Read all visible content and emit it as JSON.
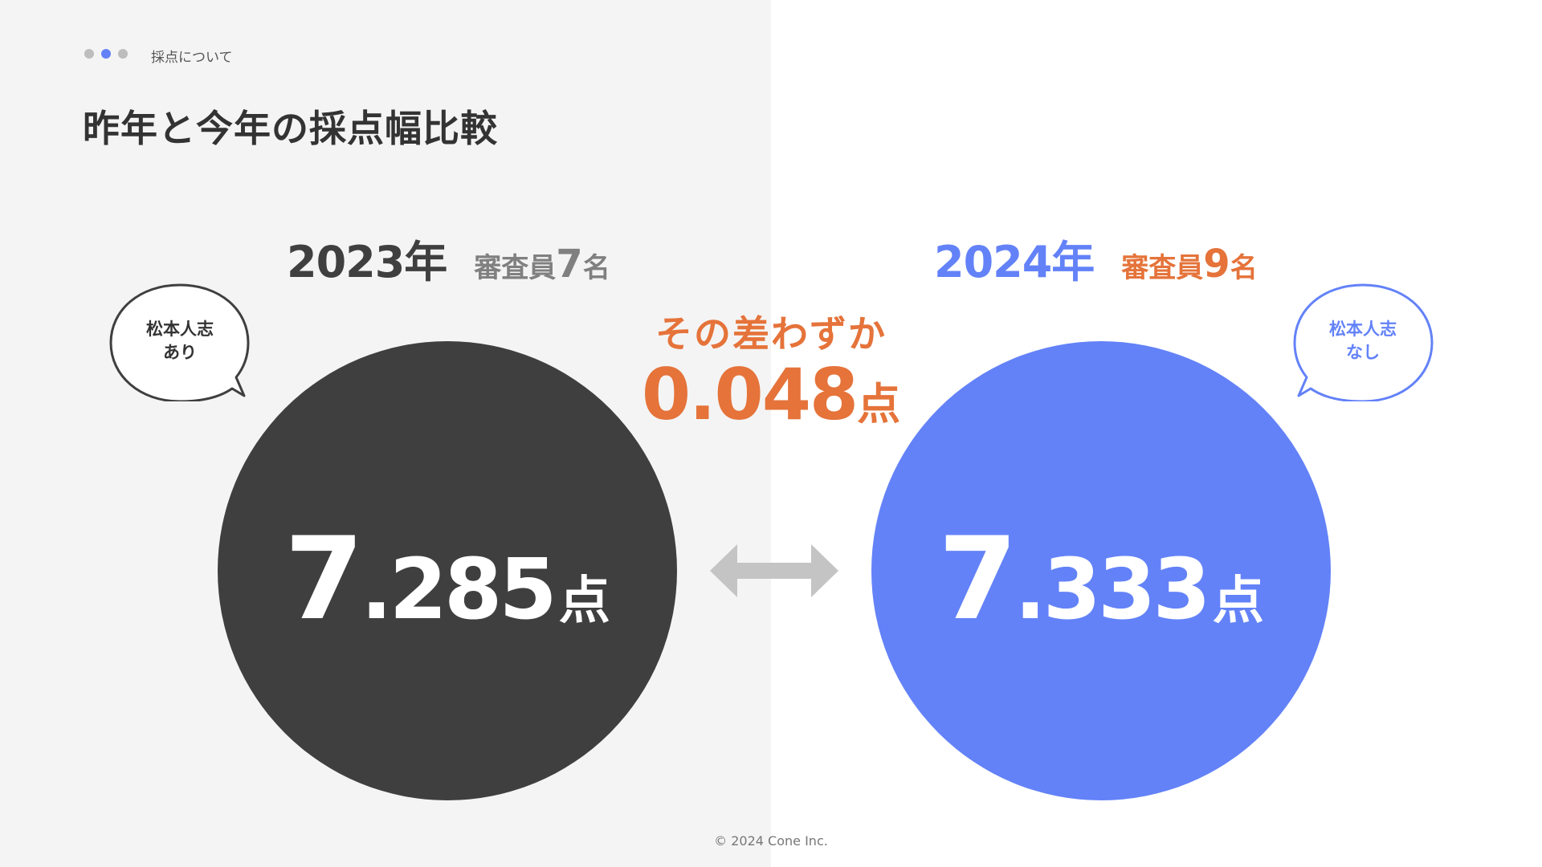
{
  "breadcrumb": {
    "section_label": "採点について",
    "dots": 3,
    "active_dot": 2
  },
  "page_title": "昨年と今年の採点幅比較",
  "year_2023": {
    "year": "2023年",
    "judges_prefix": "審査員",
    "judges_count": "7",
    "judges_suffix": "名",
    "bubble_line1": "松本人志",
    "bubble_line2": "あり",
    "score_int": "7",
    "score_dec": ".285",
    "score_unit": "点",
    "score_value": 7.285,
    "color": "#3f3f3f"
  },
  "year_2024": {
    "year": "2024年",
    "judges_prefix": "審査員",
    "judges_count": "9",
    "judges_suffix": "名",
    "bubble_line1": "松本人志",
    "bubble_line2": "なし",
    "score_int": "7",
    "score_dec": ".333",
    "score_unit": "点",
    "score_value": 7.333,
    "color": "#6382f8"
  },
  "difference": {
    "caption": "その差わずか",
    "value": "0.048",
    "unit": "点"
  },
  "icons": {
    "compare": "double-headed-arrow-icon",
    "bubble": "speech-bubble-icon"
  },
  "colors": {
    "accent_blue": "#6382f8",
    "accent_orange": "#e5733a",
    "dark": "#3f3f3f",
    "left_panel_bg": "#f4f4f4"
  },
  "footer": {
    "copyright": "© 2024 Cone Inc."
  }
}
